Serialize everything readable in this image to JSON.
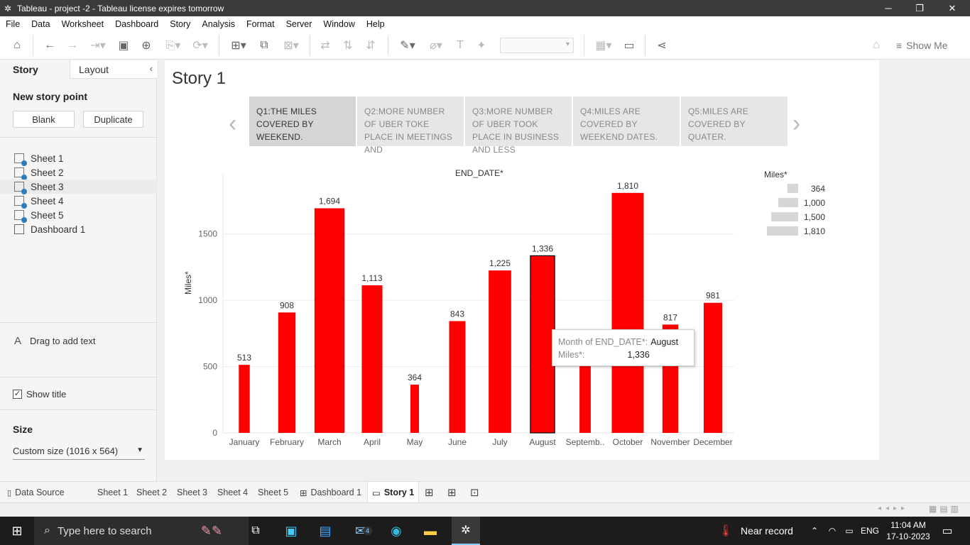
{
  "window": {
    "title": "Tableau - project -2 - Tableau license expires tomorrow",
    "minimize": "─",
    "restore": "❐",
    "close": "✕"
  },
  "menu": [
    "File",
    "Data",
    "Worksheet",
    "Dashboard",
    "Story",
    "Analysis",
    "Format",
    "Server",
    "Window",
    "Help"
  ],
  "toolbar": {
    "show_me": "Show Me"
  },
  "left_panel": {
    "tab_story": "Story",
    "tab_layout": "Layout",
    "new_story_point": "New story point",
    "blank_button": "Blank",
    "duplicate_button": "Duplicate",
    "sheets": [
      "Sheet 1",
      "Sheet 2",
      "Sheet 3",
      "Sheet 4",
      "Sheet 5",
      "Dashboard 1"
    ],
    "drag_text": "Drag to add text",
    "drag_icon": "A",
    "show_title": "Show title",
    "size_label": "Size",
    "size_value": "Custom size (1016 x 564)"
  },
  "story": {
    "title": "Story 1",
    "points": [
      "Q1:THE MILES COVERED BY WEEKEND.",
      "Q2:MORE NUMBER OF UBER TOKE PLACE IN MEETINGS AND",
      "Q3:MORE NUMBER OF UBER TOOK PLACE IN BUSINESS AND LESS",
      "Q4:MILES ARE COVERED BY WEEKEND DATES.",
      "Q5:MILES ARE COVERED BY QUATER."
    ]
  },
  "chart_data": {
    "type": "bar",
    "title": "END_DATE*",
    "xlabel": "",
    "ylabel": "Miles*",
    "categories": [
      "January",
      "February",
      "March",
      "April",
      "May",
      "June",
      "July",
      "August",
      "Septemb..",
      "October",
      "November",
      "December"
    ],
    "values": [
      513,
      908,
      1694,
      1113,
      364,
      843,
      1225,
      1336,
      530,
      1810,
      817,
      981
    ],
    "labels": [
      "513",
      "908",
      "1,694",
      "1,113",
      "364",
      "843",
      "1,225",
      "1,336",
      "",
      "1,810",
      "817",
      "981"
    ],
    "ylim": [
      0,
      1900
    ],
    "yticks": [
      0,
      500,
      1000,
      1500
    ],
    "bar_color": "#ff0000",
    "grid": true,
    "highlighted": "August",
    "legend": {
      "title": "Miles*",
      "entries": [
        {
          "value": 364,
          "label": "364"
        },
        {
          "value": 1000,
          "label": "1,000"
        },
        {
          "value": 1500,
          "label": "1,500"
        },
        {
          "value": 1810,
          "label": "1,810"
        }
      ],
      "placement": "top-right"
    },
    "tooltip": {
      "month_key": "Month of END_DATE*:",
      "month_value": "August",
      "miles_key": "Miles*:",
      "miles_value": "1,336"
    }
  },
  "bottom_tabs": {
    "data_source": "Data Source",
    "sheets": [
      "Sheet 1",
      "Sheet 2",
      "Sheet 3",
      "Sheet 4",
      "Sheet 5"
    ],
    "dashboard": "Dashboard 1",
    "story": "Story 1"
  },
  "taskbar": {
    "search_placeholder": "Type here to search",
    "weather": "Near record",
    "lang": "ENG",
    "time": "11:04 AM",
    "date": "17-10-2023",
    "mail_badge": "4"
  }
}
